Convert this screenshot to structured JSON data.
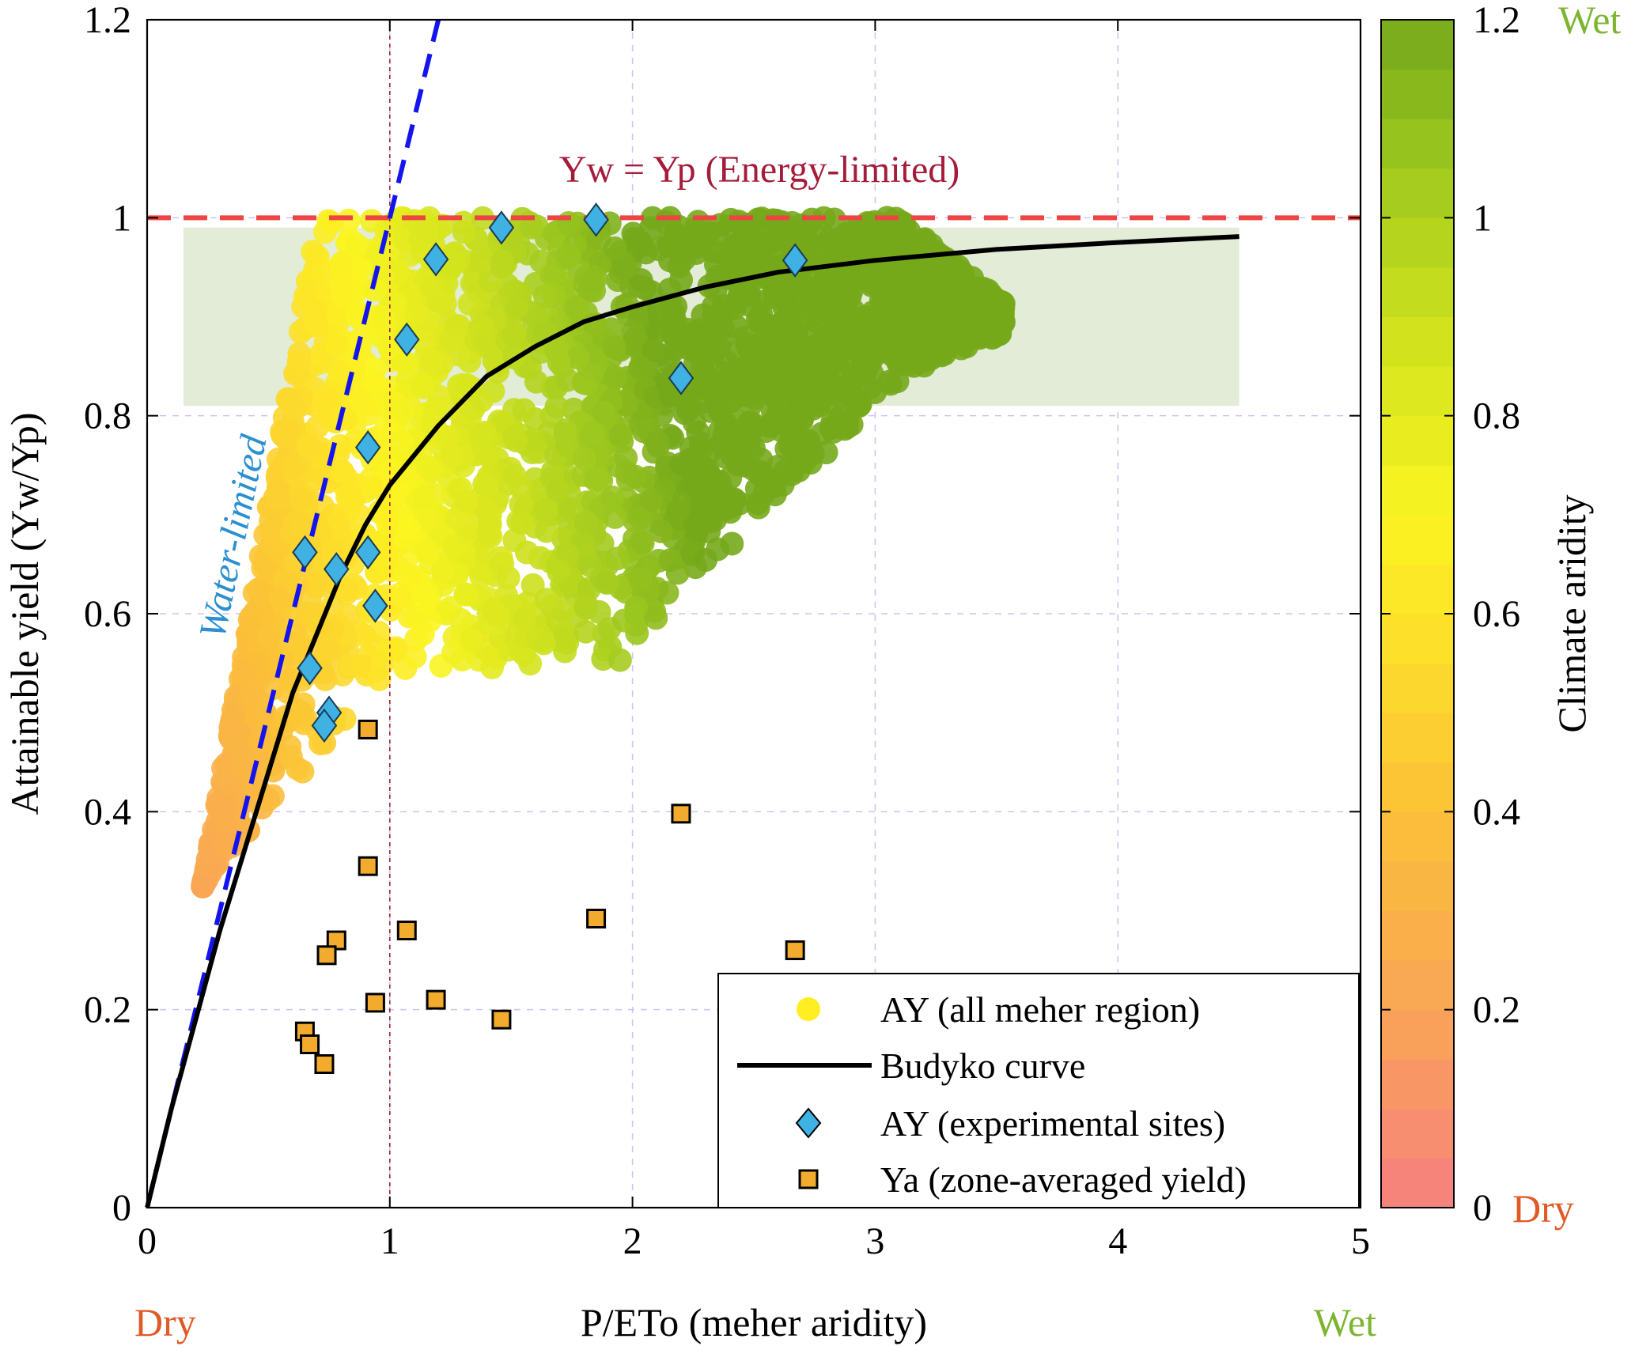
{
  "chart_data": {
    "type": "scatter",
    "xlabel": "P/ETo (meher aridity)",
    "ylabel": "Attainable yield (Yw/Yp)",
    "xlim": [
      0,
      5
    ],
    "ylim": [
      0,
      1.2
    ],
    "x_ticks": [
      "0",
      "1",
      "2",
      "3",
      "4",
      "5"
    ],
    "y_ticks": [
      "0",
      "0.2",
      "0.4",
      "0.6",
      "0.8",
      "1",
      "1.2"
    ],
    "x_dry_label": "Dry",
    "x_wet_label": "Wet",
    "grid": true,
    "annotations": {
      "energy_limited": "Yw = Yp (Energy-limited)",
      "water_limited": "Water-limited"
    },
    "reference_lines": {
      "energy_limit_y": 1,
      "unit_aridity_x": 1,
      "water_limit_slope": 1
    },
    "shaded_band": {
      "x": [
        0.15,
        4.5
      ],
      "y": [
        0.81,
        0.99
      ]
    },
    "budyko_curve": {
      "name": "Budyko curve",
      "x": [
        0,
        0.1,
        0.2,
        0.3,
        0.4,
        0.5,
        0.6,
        0.7,
        0.8,
        0.9,
        1.0,
        1.2,
        1.4,
        1.6,
        1.8,
        2.0,
        2.3,
        2.6,
        3.0,
        3.5,
        4.0,
        4.5
      ],
      "y": [
        0,
        0.1,
        0.19,
        0.28,
        0.36,
        0.44,
        0.52,
        0.58,
        0.64,
        0.69,
        0.73,
        0.79,
        0.84,
        0.87,
        0.895,
        0.91,
        0.93,
        0.945,
        0.957,
        0.968,
        0.975,
        0.981
      ]
    },
    "series": [
      {
        "name": "AY (all meher region)",
        "marker": "circle",
        "description_points": "dense cloud of simulated points colored by climate aridity"
      },
      {
        "name": "AY (experimental sites)",
        "marker": "diamond",
        "x": [
          1.85,
          1.46,
          1.19,
          1.07,
          0.91,
          0.65,
          0.78,
          0.91,
          0.94,
          0.67,
          0.75,
          0.73,
          2.2,
          2.67
        ],
        "y": [
          0.998,
          0.99,
          0.958,
          0.877,
          0.768,
          0.662,
          0.645,
          0.662,
          0.608,
          0.545,
          0.5,
          0.487,
          0.838,
          0.957
        ]
      },
      {
        "name": "Ya (zone-averaged yield)",
        "marker": "square",
        "x": [
          0.91,
          0.91,
          0.78,
          0.74,
          1.07,
          0.94,
          1.19,
          1.46,
          1.85,
          2.2,
          2.67,
          0.65,
          0.67,
          0.73
        ],
        "y": [
          0.483,
          0.345,
          0.27,
          0.255,
          0.28,
          0.207,
          0.21,
          0.19,
          0.292,
          0.398,
          0.26,
          0.178,
          0.165,
          0.145
        ]
      }
    ],
    "colorbar": {
      "label": "Climate aridity",
      "range": [
        0,
        1.2
      ],
      "ticks": [
        "0",
        "0.2",
        "0.4",
        "0.6",
        "0.8",
        "1",
        "1.2"
      ],
      "dry_label": "Dry",
      "wet_label": "Wet"
    },
    "legend": {
      "placement": "bottom-right",
      "entries": [
        "AY (all meher region)",
        "Budyko curve",
        "AY (experimental sites)",
        "Ya (zone-averaged yield)"
      ]
    }
  },
  "colors": {
    "energy_line": "#ee4444",
    "energy_text": "#a51c3a",
    "water_line": "#1414ee",
    "water_text": "#2b8fd0",
    "unit_line": "#9b2335",
    "dry_text": "#e05a26",
    "wet_text": "#7db532",
    "diamond_fill": "#3fb1e3",
    "square_fill": "#f2ab2c",
    "band_fill": "#e2ecd6",
    "grid": "#c6c6f4",
    "legend_dot": "#ffee22"
  }
}
